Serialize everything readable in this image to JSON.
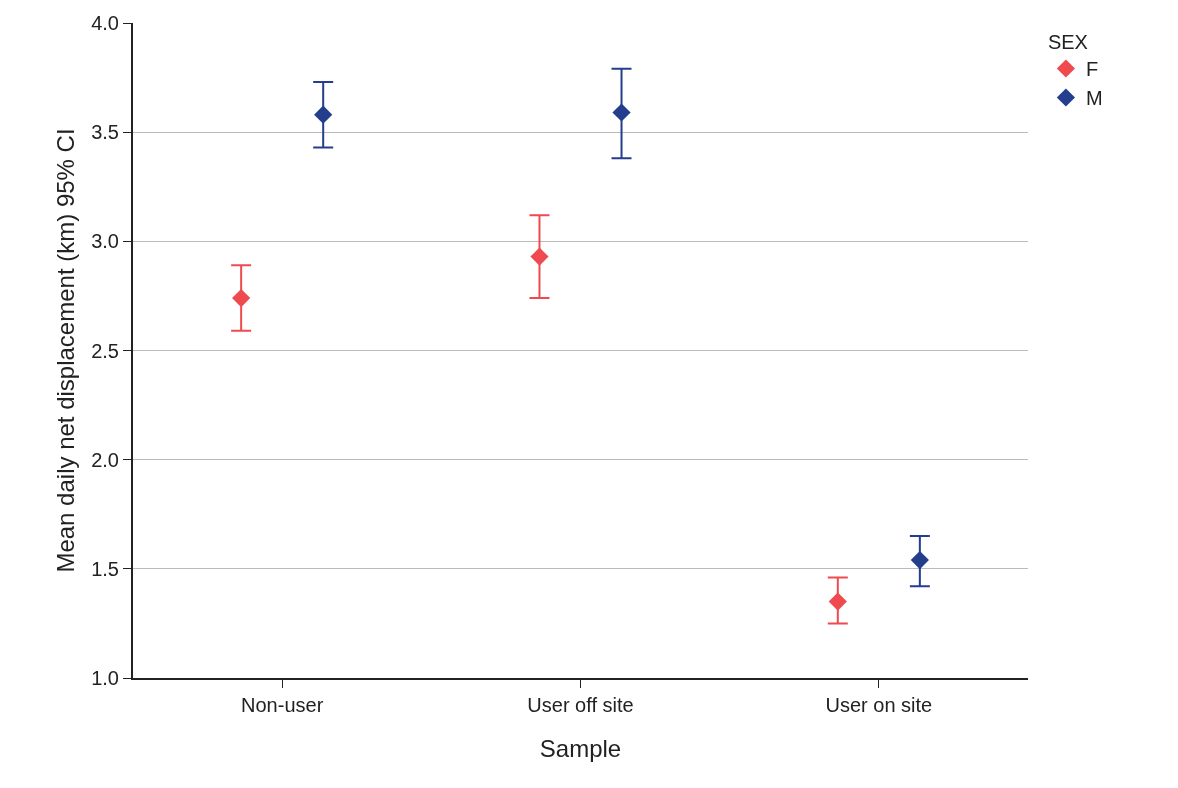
{
  "chart_data": {
    "type": "scatter",
    "xlabel": "Sample",
    "ylabel": "Mean daily net displacement (km) 95% CI",
    "legend_title": "SEX",
    "categories": [
      "Non-user",
      "User off site",
      "User on site"
    ],
    "series": [
      {
        "name": "F",
        "color": "#ef4a4f",
        "values": [
          2.74,
          2.93,
          1.35
        ],
        "errors": [
          [
            2.59,
            2.89
          ],
          [
            2.74,
            3.12
          ],
          [
            1.25,
            1.46
          ]
        ]
      },
      {
        "name": "M",
        "color": "#233e8c",
        "values": [
          3.58,
          3.59,
          1.54
        ],
        "errors": [
          [
            3.43,
            3.73
          ],
          [
            3.38,
            3.79
          ],
          [
            1.42,
            1.65
          ]
        ]
      }
    ],
    "ylim": [
      1.0,
      4.0
    ],
    "yticks": [
      {
        "value": 1,
        "label": "1.0"
      },
      1.5,
      {
        "value": 2,
        "label": "2.0"
      },
      2.5,
      {
        "value": 3,
        "label": "3.0"
      },
      3.5,
      {
        "value": 4,
        "label": "4.0"
      }
    ],
    "grid": "y",
    "legend": "top right",
    "marker": "diamond"
  }
}
